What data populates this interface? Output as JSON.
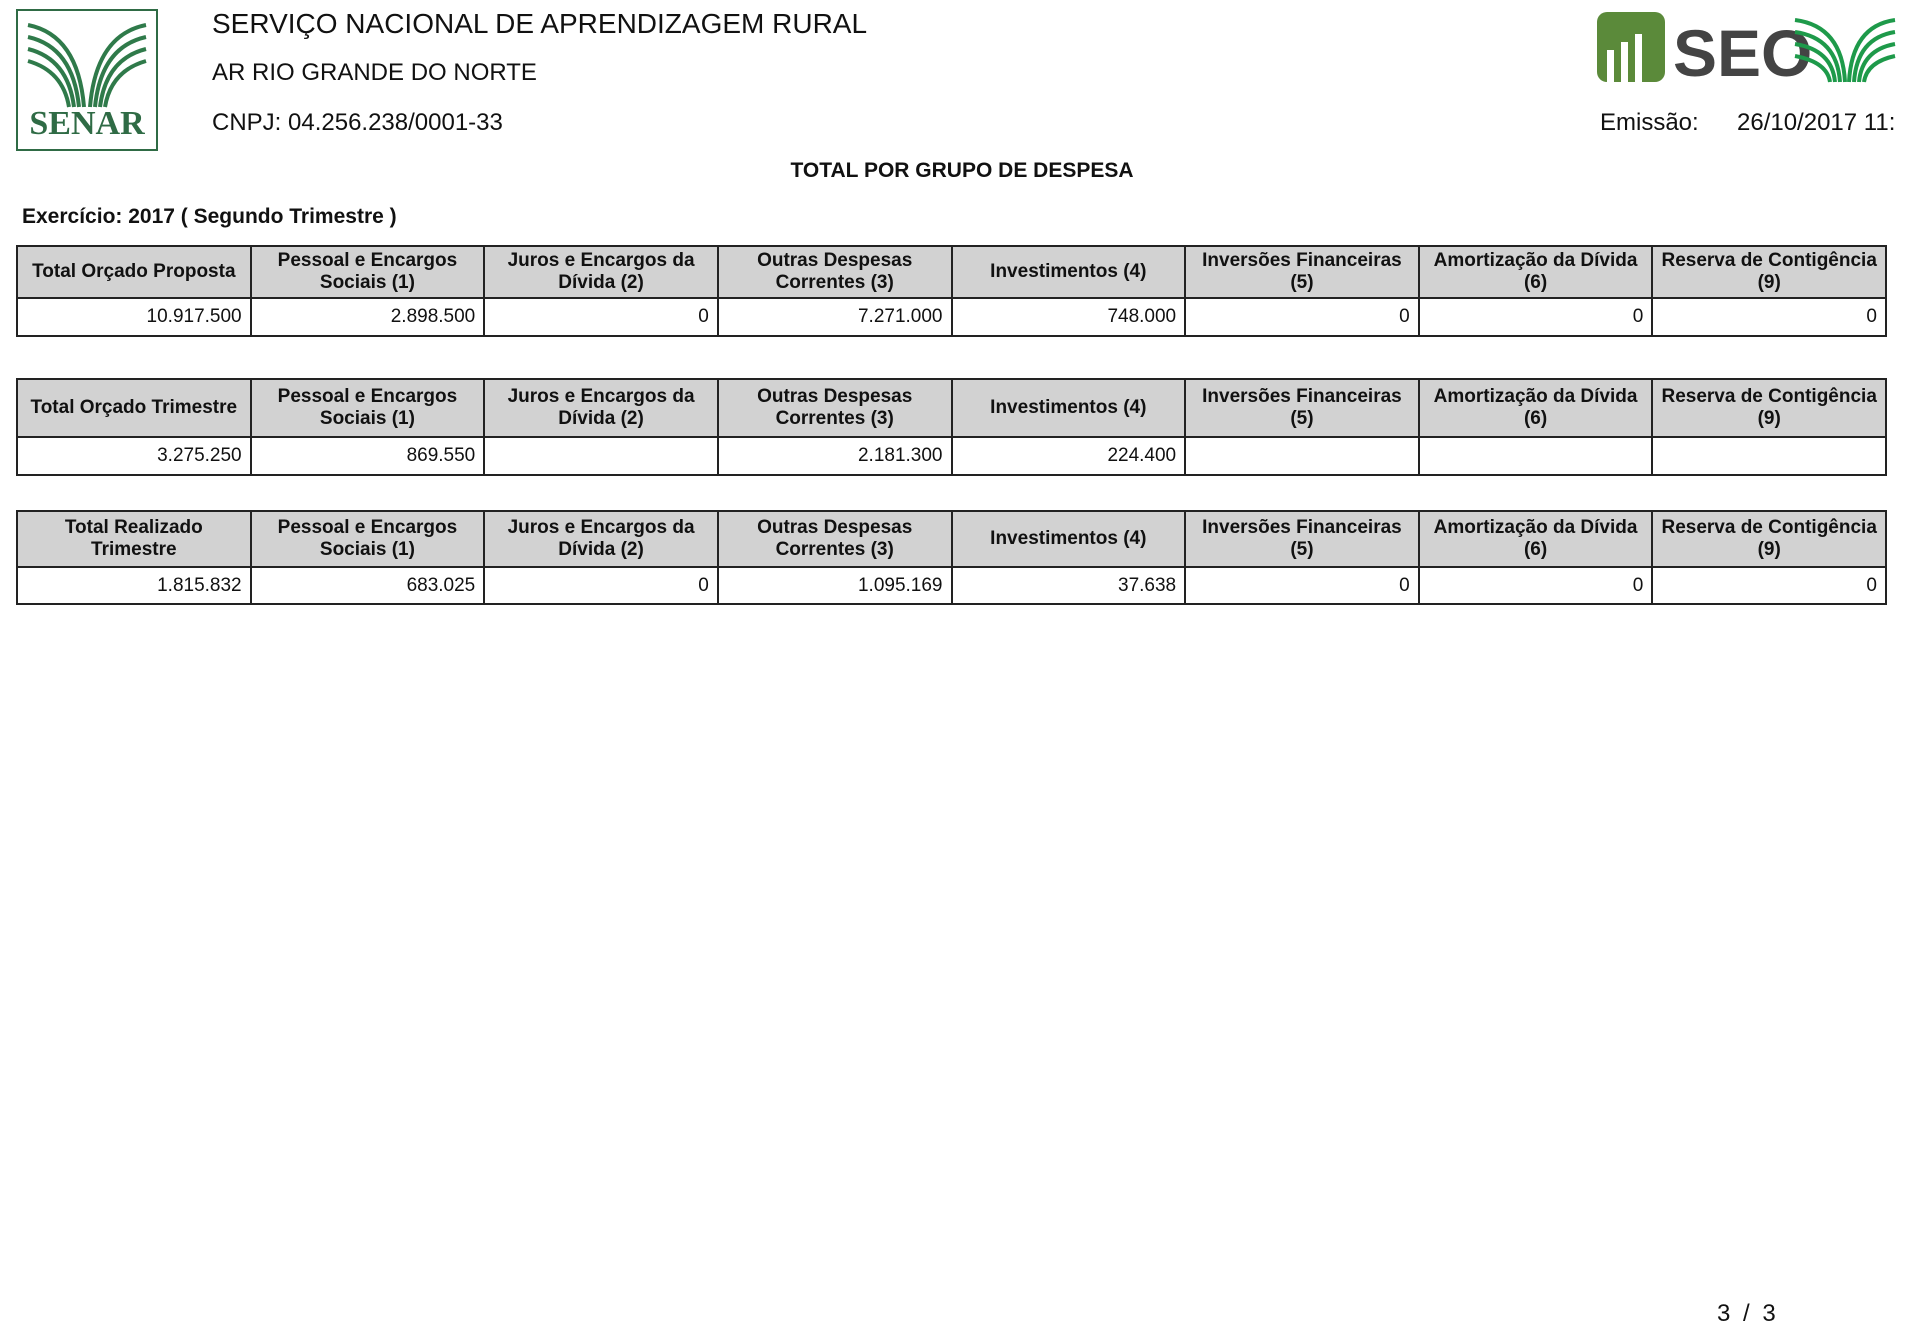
{
  "header": {
    "org_name": "SERVIÇO NACIONAL DE APRENDIZAGEM RURAL",
    "regional": "AR RIO GRANDE DO NORTE",
    "cnpj": "CNPJ: 04.256.238/0001-33",
    "emissao_label": "Emissão:",
    "emissao_value": "26/10/2017 11:",
    "senar_logo_text": "SENAR",
    "seo_logo_text": "SEO"
  },
  "report": {
    "title": "TOTAL POR GRUPO DE DESPESA",
    "exercicio": "Exercício: 2017 ( Segundo Trimestre )"
  },
  "columns_common": [
    "Pessoal e Encargos Sociais (1)",
    "Juros e Encargos da Dívida (2)",
    "Outras Despesas Correntes (3)",
    "Investimentos (4)",
    "Inversões Financeiras (5)",
    "Amortização da Dívida (6)",
    "Reserva de Contigência (9)"
  ],
  "tables": [
    {
      "first_header": "Total Orçado Proposta",
      "values": [
        "10.917.500",
        "2.898.500",
        "0",
        "7.271.000",
        "748.000",
        "0",
        "0",
        "0"
      ]
    },
    {
      "first_header": "Total Orçado Trimestre",
      "values": [
        "3.275.250",
        "869.550",
        "",
        "2.181.300",
        "224.400",
        "",
        "",
        ""
      ]
    },
    {
      "first_header": "Total Realizado Trimestre",
      "values": [
        "1.815.832",
        "683.025",
        "0",
        "1.095.169",
        "37.638",
        "0",
        "0",
        "0"
      ]
    }
  ],
  "footer": {
    "page": "3 / 3"
  },
  "colors": {
    "brand_green": "#2f6b45",
    "seo_green": "#5b8a3a",
    "header_bg": "#d2d2d2"
  }
}
